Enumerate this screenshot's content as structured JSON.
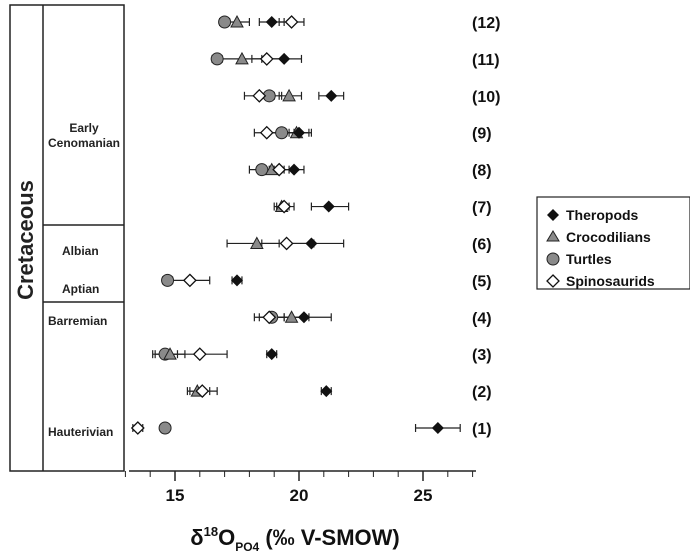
{
  "chart_data": {
    "type": "scatter",
    "xlabel": {
      "main": "δ",
      "sup": "18",
      "o": "O",
      "sub": "PO4",
      "unit": " (‰ V-SMOW)"
    },
    "xlim": [
      13,
      27
    ],
    "xticks": [
      15,
      20,
      25
    ],
    "period_label": "Cretaceous",
    "stages": [
      {
        "label": "Early",
        "label2": "Cenomanian"
      },
      {
        "label": "Albian"
      },
      {
        "label": "Aptian"
      },
      {
        "label": "Barremian"
      },
      {
        "label": "Hauterivian"
      }
    ],
    "rows": [
      "(12)",
      "(11)",
      "(10)",
      "(9)",
      "(8)",
      "(7)",
      "(6)",
      "(5)",
      "(4)",
      "(3)",
      "(2)",
      "(1)"
    ],
    "legend": [
      "Theropods",
      "Crocodilians",
      "Turtles",
      "Spinosaurids"
    ],
    "series": [
      {
        "name": "Theropods",
        "marker": "diamond-filled",
        "color": "#111111",
        "points": [
          {
            "row": 12,
            "x": 18.9,
            "lo": 18.4,
            "hi": 19.4
          },
          {
            "row": 11,
            "x": 19.4,
            "lo": 18.8,
            "hi": 20.1
          },
          {
            "row": 10,
            "x": 21.3,
            "lo": 20.8,
            "hi": 21.8
          },
          {
            "row": 9,
            "x": 20.0,
            "lo": 19.6,
            "hi": 20.5
          },
          {
            "row": 8,
            "x": 19.8,
            "lo": 19.4,
            "hi": 20.2
          },
          {
            "row": 7,
            "x": 21.2,
            "lo": 20.5,
            "hi": 22.0
          },
          {
            "row": 6,
            "x": 20.5,
            "lo": 19.2,
            "hi": 21.8
          },
          {
            "row": 5,
            "x": 17.5,
            "lo": 17.3,
            "hi": 17.7
          },
          {
            "row": 4,
            "x": 20.2,
            "lo": 19.0,
            "hi": 21.3
          },
          {
            "row": 3,
            "x": 18.9,
            "lo": 18.7,
            "hi": 19.1
          },
          {
            "row": 2,
            "x": 21.1,
            "lo": 20.9,
            "hi": 21.3
          },
          {
            "row": 1,
            "x": 25.6,
            "lo": 24.7,
            "hi": 26.5
          }
        ]
      },
      {
        "name": "Crocodilians",
        "marker": "triangle-gray",
        "color": "#8a8a8a",
        "points": [
          {
            "row": 12,
            "x": 17.5,
            "lo": 17.0,
            "hi": 18.0
          },
          {
            "row": 11,
            "x": 17.7,
            "lo": 16.5,
            "hi": 18.5
          },
          {
            "row": 10,
            "x": 19.6,
            "lo": 19.2,
            "hi": 20.1
          },
          {
            "row": 9,
            "x": 19.9,
            "lo": 19.5,
            "hi": 20.4
          },
          {
            "row": 8,
            "x": 18.9,
            "lo": 18.5,
            "hi": 19.3
          },
          {
            "row": 7,
            "x": 19.3,
            "lo": 19.0,
            "hi": 19.6
          },
          {
            "row": 6,
            "x": 18.3,
            "lo": 17.1,
            "hi": 19.4
          },
          {
            "row": 4,
            "x": 19.7,
            "lo": 19.0,
            "hi": 20.4
          },
          {
            "row": 3,
            "x": 14.8,
            "lo": 14.2,
            "hi": 15.4
          },
          {
            "row": 2,
            "x": 15.9,
            "lo": 15.5,
            "hi": 16.4
          }
        ]
      },
      {
        "name": "Turtles",
        "marker": "circle-gray",
        "color": "#8a8a8a",
        "points": [
          {
            "row": 12,
            "x": 17.0,
            "lo": 16.8,
            "hi": 17.2
          },
          {
            "row": 11,
            "x": 16.7,
            "lo": 16.5,
            "hi": 16.9
          },
          {
            "row": 10,
            "x": 18.8,
            "lo": 18.3,
            "hi": 19.3
          },
          {
            "row": 9,
            "x": 19.3,
            "lo": 18.8,
            "hi": 19.8
          },
          {
            "row": 8,
            "x": 18.5,
            "lo": 18.0,
            "hi": 19.0
          },
          {
            "row": 5,
            "x": 14.7,
            "lo": 14.5,
            "hi": 14.9
          },
          {
            "row": 4,
            "x": 18.9,
            "lo": 18.4,
            "hi": 19.4
          },
          {
            "row": 3,
            "x": 14.6,
            "lo": 14.1,
            "hi": 15.1
          },
          {
            "row": 1,
            "x": 14.6,
            "lo": 14.5,
            "hi": 14.7
          }
        ]
      },
      {
        "name": "Spinosaurids",
        "marker": "diamond-open",
        "color": "#111111",
        "points": [
          {
            "row": 12,
            "x": 19.7,
            "lo": 19.2,
            "hi": 20.2
          },
          {
            "row": 11,
            "x": 18.7,
            "lo": 18.1,
            "hi": 19.4
          },
          {
            "row": 10,
            "x": 18.4,
            "lo": 17.8,
            "hi": 19.0
          },
          {
            "row": 9,
            "x": 18.7,
            "lo": 18.2,
            "hi": 19.2
          },
          {
            "row": 8,
            "x": 19.2,
            "lo": 18.8,
            "hi": 19.6
          },
          {
            "row": 7,
            "x": 19.4,
            "lo": 19.1,
            "hi": 19.8
          },
          {
            "row": 6,
            "x": 19.5,
            "lo": 18.5,
            "hi": 20.6
          },
          {
            "row": 5,
            "x": 15.6,
            "lo": 14.8,
            "hi": 16.4
          },
          {
            "row": 4,
            "x": 18.8,
            "lo": 18.2,
            "hi": 19.4
          },
          {
            "row": 3,
            "x": 16.0,
            "lo": 14.8,
            "hi": 17.1
          },
          {
            "row": 2,
            "x": 16.1,
            "lo": 15.6,
            "hi": 16.7
          },
          {
            "row": 1,
            "x": 13.5,
            "lo": 13.3,
            "hi": 13.7
          }
        ]
      }
    ]
  }
}
